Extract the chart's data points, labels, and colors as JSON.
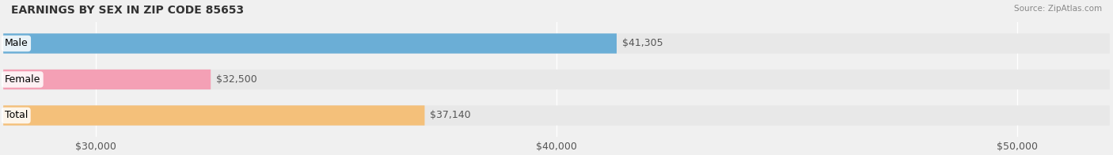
{
  "title": "EARNINGS BY SEX IN ZIP CODE 85653",
  "source": "Source: ZipAtlas.com",
  "categories": [
    "Male",
    "Female",
    "Total"
  ],
  "values": [
    41305,
    32500,
    37140
  ],
  "bar_colors": [
    "#6baed6",
    "#f4a0b5",
    "#f4c07a"
  ],
  "label_colors": [
    "#6baed6",
    "#f4a0b5",
    "#f4c07a"
  ],
  "value_labels": [
    "$41,305",
    "$32,500",
    "$37,140"
  ],
  "xlim": [
    28000,
    52000
  ],
  "xticks": [
    30000,
    40000,
    50000
  ],
  "xtick_labels": [
    "$30,000",
    "$40,000",
    "$50,000"
  ],
  "bar_height": 0.55,
  "background_color": "#f0f0f0",
  "bar_bg_color": "#e8e8e8",
  "title_fontsize": 10,
  "tick_fontsize": 9,
  "label_fontsize": 9,
  "value_fontsize": 9
}
